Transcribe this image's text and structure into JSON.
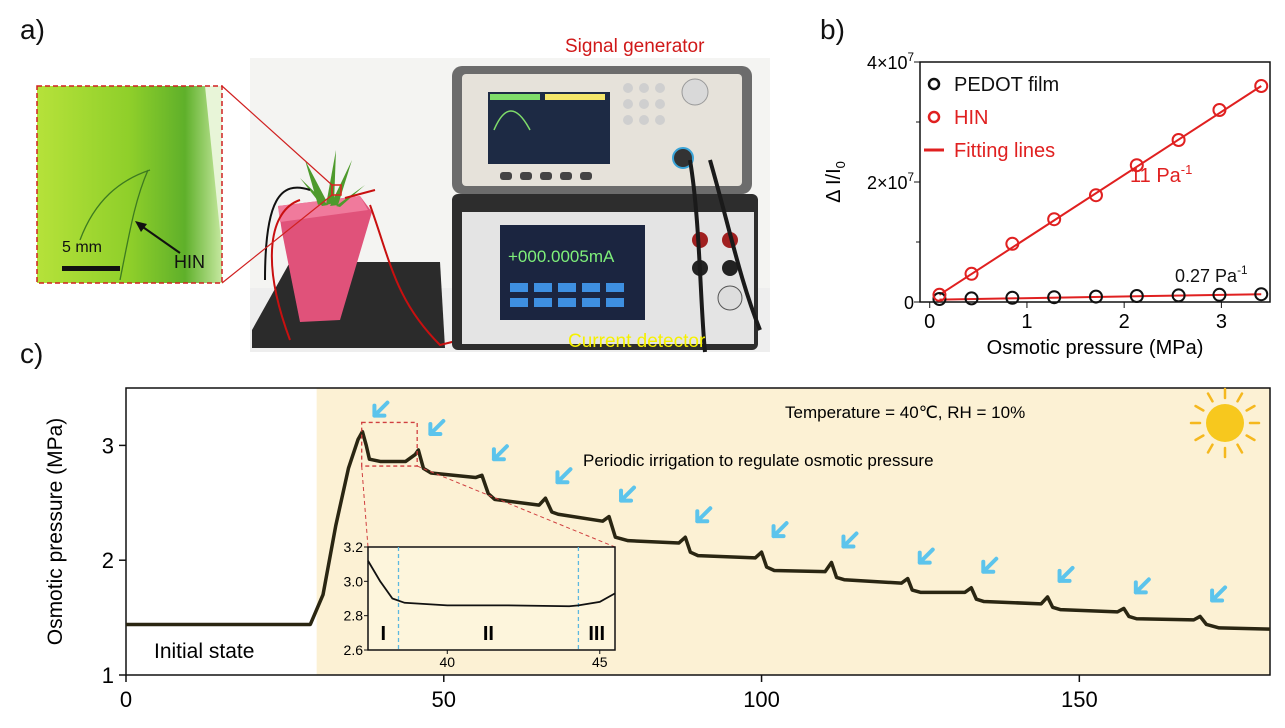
{
  "panels": {
    "a": "a)",
    "b": "b)",
    "c": "c)"
  },
  "photo": {
    "signal_generator_label": "Signal generator",
    "current_detector_label": "Current detector",
    "display_reading": "+000.0005mA",
    "scale_bar": "5 mm",
    "hin_label": "HIN",
    "colors": {
      "signal_label": "#d01818",
      "detector_label": "#f5f000",
      "leaf": "#8fcf2a",
      "pot": "#e0527a"
    }
  },
  "chart_data": [
    {
      "type": "scatter",
      "panel": "b",
      "xlabel": "Osmotic pressure (MPa)",
      "ylabel": "Δ I/I0",
      "xlim": [
        -0.1,
        3.5
      ],
      "ylim": [
        0,
        40000000
      ],
      "xticks": [
        "0",
        "1",
        "2",
        "3"
      ],
      "yticks": [
        "0",
        "2×10^7",
        "4×10^7"
      ],
      "legend_position": "top-left",
      "legend": [
        "PEDOT film",
        "HIN",
        "Fitting lines"
      ],
      "series": [
        {
          "name": "PEDOT film",
          "color": "#111111",
          "x": [
            0.1,
            0.43,
            0.85,
            1.28,
            1.71,
            2.13,
            2.56,
            2.98,
            3.41
          ],
          "y": [
            500000,
            600000,
            700000,
            800000,
            900000,
            1000000,
            1100000,
            1200000,
            1300000
          ]
        },
        {
          "name": "HIN",
          "color": "#e02020",
          "x": [
            0.1,
            0.43,
            0.85,
            1.28,
            1.71,
            2.13,
            2.56,
            2.98,
            3.41
          ],
          "y": [
            1200000,
            4700000,
            9700000,
            13800000,
            17800000,
            22800000,
            27000000,
            32000000,
            36000000
          ]
        }
      ],
      "fits": [
        {
          "name": "Fitting lines",
          "color": "#e02020",
          "x": [
            0.1,
            3.41
          ],
          "y": [
            1200000,
            36000000
          ]
        },
        {
          "color": "#e02020",
          "x": [
            0.1,
            3.41
          ],
          "y": [
            400000,
            1300000
          ]
        }
      ],
      "annotations": {
        "hin_slope": "11 Pa",
        "pedot_slope": "0.27 Pa",
        "superscript": "-1"
      }
    },
    {
      "type": "line",
      "panel": "c",
      "ylabel": "Osmotic pressure (MPa)",
      "xlim": [
        0,
        180
      ],
      "ylim": [
        1,
        3.5
      ],
      "xticks": [
        "0",
        "50",
        "100",
        "150"
      ],
      "yticks": [
        "1",
        "2",
        "3"
      ],
      "shaded_from_x": 30,
      "colors": {
        "line": "#2a2612",
        "shade": "#fcf1d4",
        "arrow": "#5cc4ec",
        "sun": "#f7c81e"
      },
      "annotations": {
        "initial": "Initial state",
        "conditions": "Temperature = 40℃, RH = 10%",
        "irrigation": "Periodic irrigation to regulate osmotic pressure"
      },
      "irrigation_times": [
        37,
        46,
        56,
        66,
        76,
        88,
        100,
        111,
        123,
        133,
        145,
        157,
        169
      ],
      "points": [
        [
          0,
          1.44
        ],
        [
          29,
          1.44
        ],
        [
          31,
          1.7
        ],
        [
          33,
          2.3
        ],
        [
          35,
          2.8
        ],
        [
          36.5,
          3.05
        ],
        [
          37.2,
          3.12
        ],
        [
          37.8,
          3.0
        ],
        [
          38.3,
          2.88
        ],
        [
          40,
          2.86
        ],
        [
          44,
          2.86
        ],
        [
          45.5,
          2.92
        ],
        [
          46,
          2.96
        ],
        [
          46.8,
          2.8
        ],
        [
          48,
          2.76
        ],
        [
          55,
          2.72
        ],
        [
          56,
          2.74
        ],
        [
          57,
          2.58
        ],
        [
          58,
          2.53
        ],
        [
          65,
          2.48
        ],
        [
          66,
          2.54
        ],
        [
          67,
          2.42
        ],
        [
          68,
          2.4
        ],
        [
          75,
          2.34
        ],
        [
          76,
          2.38
        ],
        [
          77,
          2.2
        ],
        [
          79,
          2.17
        ],
        [
          87,
          2.15
        ],
        [
          88,
          2.2
        ],
        [
          88.8,
          2.07
        ],
        [
          90,
          2.04
        ],
        [
          99,
          2.02
        ],
        [
          100,
          2.07
        ],
        [
          100.8,
          1.94
        ],
        [
          102,
          1.91
        ],
        [
          110,
          1.9
        ],
        [
          111,
          1.98
        ],
        [
          111.8,
          1.85
        ],
        [
          113,
          1.83
        ],
        [
          122,
          1.8
        ],
        [
          123,
          1.84
        ],
        [
          123.7,
          1.74
        ],
        [
          125,
          1.72
        ],
        [
          132,
          1.72
        ],
        [
          133,
          1.76
        ],
        [
          133.8,
          1.66
        ],
        [
          135,
          1.64
        ],
        [
          144,
          1.62
        ],
        [
          145,
          1.68
        ],
        [
          145.8,
          1.59
        ],
        [
          147,
          1.57
        ],
        [
          156,
          1.55
        ],
        [
          157,
          1.58
        ],
        [
          157.8,
          1.51
        ],
        [
          159,
          1.49
        ],
        [
          168,
          1.48
        ],
        [
          169,
          1.51
        ],
        [
          170,
          1.44
        ],
        [
          172,
          1.41
        ],
        [
          180,
          1.4
        ]
      ],
      "inset": {
        "xlim": [
          37.4,
          45.5
        ],
        "ylim": [
          2.6,
          3.2
        ],
        "xticks": [
          "40",
          "45"
        ],
        "yticks": [
          "2.6",
          "2.8",
          "3.0",
          "3.2"
        ],
        "stage_boundaries": [
          38.4,
          44.3
        ],
        "stages": [
          "I",
          "II",
          "III"
        ],
        "points": [
          [
            37.4,
            3.12
          ],
          [
            37.8,
            3.0
          ],
          [
            38.2,
            2.9
          ],
          [
            38.6,
            2.875
          ],
          [
            40,
            2.86
          ],
          [
            42,
            2.86
          ],
          [
            44,
            2.855
          ],
          [
            44.3,
            2.86
          ],
          [
            45,
            2.88
          ],
          [
            45.5,
            2.93
          ]
        ]
      }
    }
  ]
}
